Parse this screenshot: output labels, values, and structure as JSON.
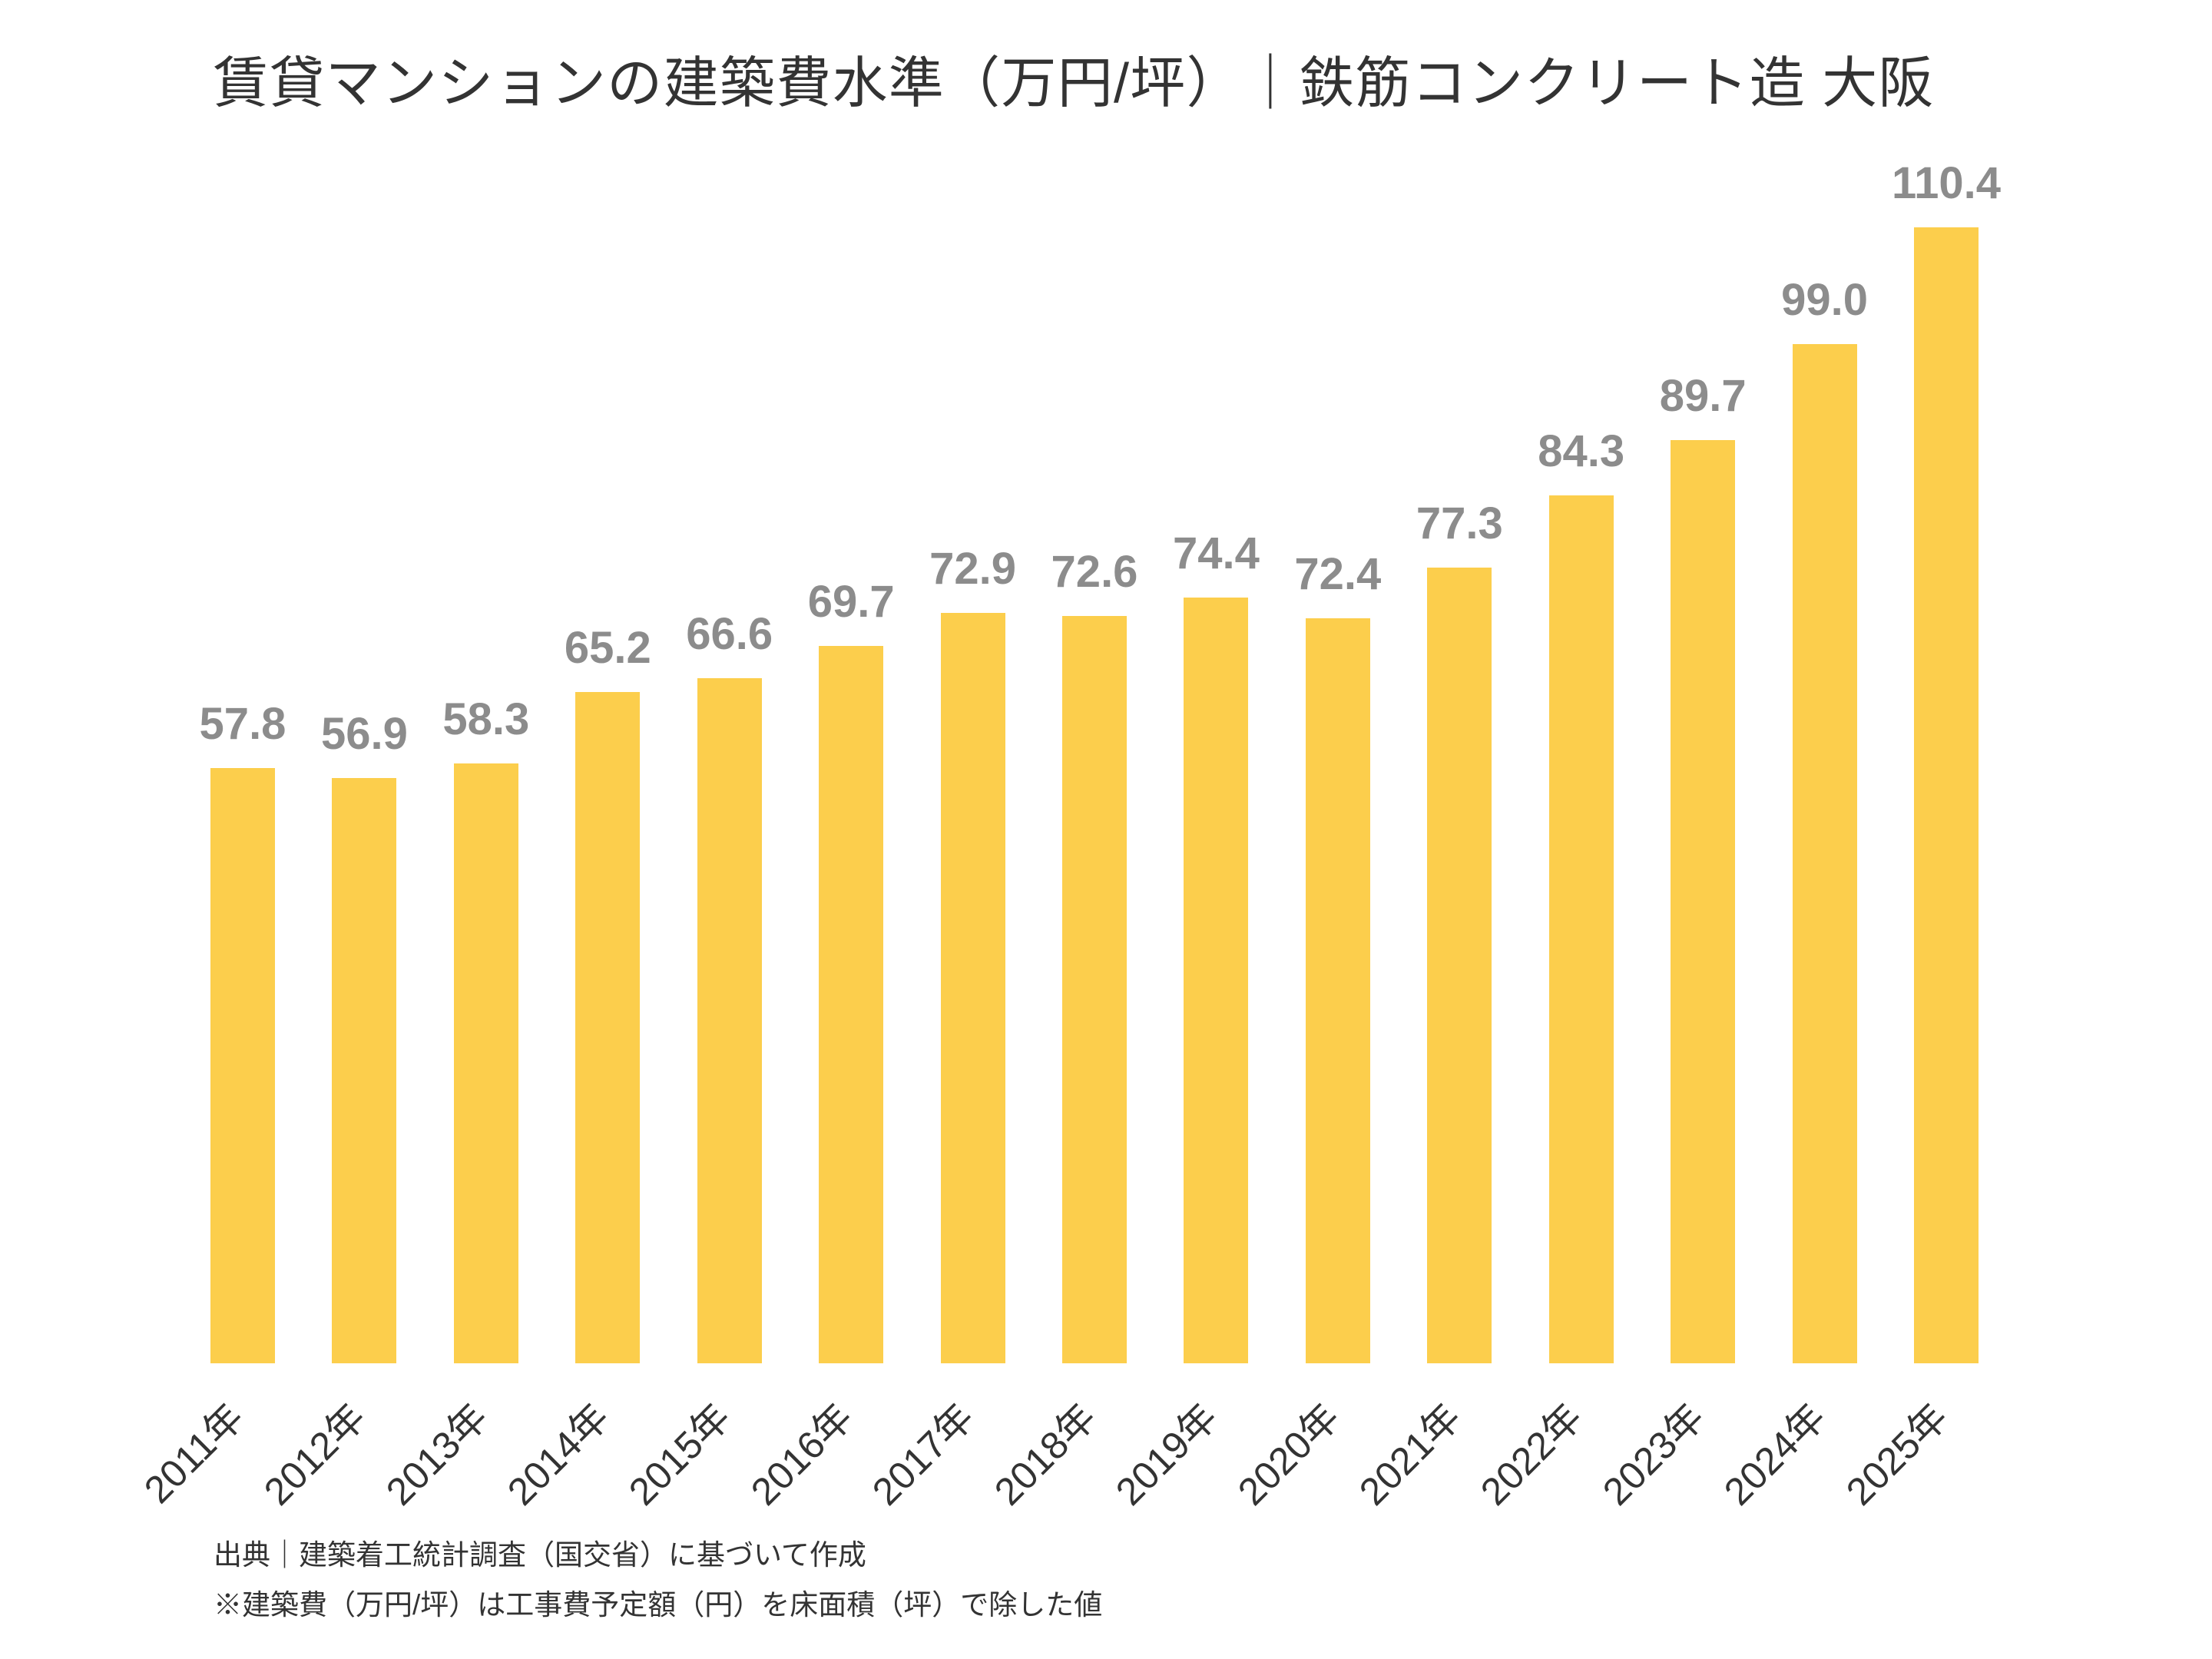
{
  "title": "賃貸マンションの建築費水準（万円/坪）｜鉄筋コンクリート造 大阪",
  "footer": {
    "source_line": "出典｜建築着工統計調査（国交省）に基づいて作成",
    "note_line": "※建築費（万円/坪）は工事費予定額（円）を床面積（坪）で除した値"
  },
  "colors": {
    "bar": "#FCCE4C",
    "value_label": "#8C8C8C",
    "axis_label": "#333333",
    "title": "#333333"
  },
  "chart_data": {
    "type": "bar",
    "categories": [
      "2011年",
      "2012年",
      "2013年",
      "2014年",
      "2015年",
      "2016年",
      "2017年",
      "2018年",
      "2019年",
      "2020年",
      "2021年",
      "2022年",
      "2023年",
      "2024年",
      "2025年"
    ],
    "values": [
      57.8,
      56.9,
      58.3,
      65.2,
      66.6,
      69.7,
      72.9,
      72.6,
      74.4,
      72.4,
      77.3,
      84.3,
      89.7,
      99.0,
      110.4
    ],
    "title": "賃貸マンションの建築費水準（万円/坪）｜鉄筋コンクリート造 大阪",
    "xlabel": "",
    "ylabel": "",
    "value_labels": true,
    "grid": false,
    "legend": false,
    "axes_visible": false
  }
}
